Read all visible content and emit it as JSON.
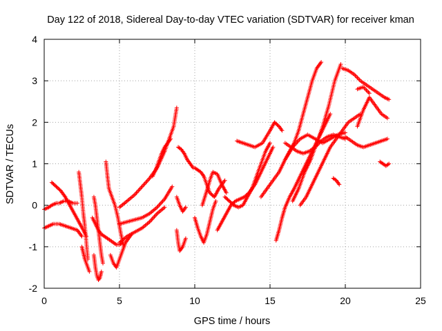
{
  "chart_data": {
    "type": "scatter",
    "title": "Day 122 of 2018, Sidereal Day-to-day VTEC variation (SDTVAR) for receiver kman",
    "xlabel": "GPS time / hours",
    "ylabel": "SDTVAR / TECUs",
    "xlim": [
      0,
      25
    ],
    "ylim": [
      -2,
      4
    ],
    "xticks": [
      "0",
      "5",
      "10",
      "15",
      "20",
      "25"
    ],
    "yticks": [
      "-2",
      "-1",
      "0",
      "1",
      "2",
      "3",
      "4"
    ],
    "grid": true,
    "marker": "+",
    "color": "#ff0000",
    "series": [
      {
        "x": [
          0.0,
          0.3,
          0.5,
          0.8,
          1.0,
          1.3,
          1.6,
          1.9,
          2.2
        ],
        "y": [
          -0.1,
          -0.05,
          0.0,
          0.05,
          0.05,
          0.1,
          0.1,
          0.05,
          0.05
        ]
      },
      {
        "x": [
          0.0,
          0.3,
          0.6,
          1.0,
          1.4,
          1.8,
          2.2,
          2.5
        ],
        "y": [
          -0.55,
          -0.5,
          -0.45,
          -0.45,
          -0.5,
          -0.55,
          -0.6,
          -0.75
        ]
      },
      {
        "x": [
          0.5,
          0.8,
          1.1,
          1.4,
          1.7,
          2.0,
          2.3,
          2.6,
          2.8
        ],
        "y": [
          0.55,
          0.45,
          0.35,
          0.2,
          0.0,
          -0.2,
          -0.4,
          -0.6,
          -0.75
        ]
      },
      {
        "x": [
          2.3,
          2.4,
          2.5,
          2.6,
          2.7,
          2.8,
          2.9
        ],
        "y": [
          0.8,
          0.5,
          0.2,
          -0.2,
          -0.5,
          -0.9,
          -1.3
        ]
      },
      {
        "x": [
          2.5,
          2.6,
          2.7,
          2.8,
          2.9,
          3.0
        ],
        "y": [
          -1.0,
          -1.15,
          -1.3,
          -1.4,
          -1.5,
          -1.6
        ]
      },
      {
        "x": [
          3.2,
          3.4,
          3.6,
          3.8,
          4.0,
          4.2,
          4.4,
          4.6,
          4.8,
          5.0,
          5.2
        ],
        "y": [
          -0.3,
          -0.45,
          -0.6,
          -0.7,
          -0.75,
          -0.8,
          -0.85,
          -0.9,
          -0.95,
          -0.95,
          -0.9
        ]
      },
      {
        "x": [
          3.3,
          3.4,
          3.5,
          3.6,
          3.7,
          3.8
        ],
        "y": [
          -1.2,
          -1.5,
          -1.7,
          -1.8,
          -1.75,
          -1.6
        ]
      },
      {
        "x": [
          3.3,
          3.4,
          3.5,
          3.6,
          3.7,
          3.8,
          3.9
        ],
        "y": [
          0.2,
          0.0,
          -0.3,
          -0.6,
          -0.9,
          -1.2,
          -1.4
        ]
      },
      {
        "x": [
          4.1,
          4.2,
          4.3,
          4.5,
          4.7,
          4.9,
          5.1,
          5.3
        ],
        "y": [
          1.05,
          0.7,
          0.4,
          0.2,
          0.0,
          -0.3,
          -0.7,
          -1.0
        ]
      },
      {
        "x": [
          4.4,
          4.6,
          4.8,
          5.0,
          5.2,
          5.4,
          5.6,
          5.8
        ],
        "y": [
          -1.2,
          -1.4,
          -1.5,
          -1.3,
          -1.1,
          -0.9,
          -0.8,
          -0.7
        ]
      },
      {
        "x": [
          5.0,
          5.5,
          6.0,
          6.5,
          7.0,
          7.5,
          8.0,
          8.3,
          8.6,
          8.8
        ],
        "y": [
          -0.05,
          0.1,
          0.25,
          0.45,
          0.65,
          0.9,
          1.3,
          1.6,
          1.9,
          2.35
        ]
      },
      {
        "x": [
          5.0,
          5.5,
          6.0,
          6.5,
          7.0,
          7.5,
          8.0,
          8.5
        ],
        "y": [
          -0.45,
          -0.4,
          -0.35,
          -0.3,
          -0.2,
          -0.05,
          0.15,
          0.45
        ]
      },
      {
        "x": [
          5.0,
          5.5,
          6.0,
          6.5,
          7.0,
          7.5,
          8.0
        ],
        "y": [
          -0.9,
          -0.75,
          -0.65,
          -0.55,
          -0.4,
          -0.2,
          -0.05
        ]
      },
      {
        "x": [
          7.2,
          7.4,
          7.6,
          7.8,
          8.0,
          8.2,
          8.4
        ],
        "y": [
          0.7,
          0.85,
          1.05,
          1.25,
          1.4,
          1.5,
          1.6
        ]
      },
      {
        "x": [
          8.8,
          8.9,
          9.0,
          9.2,
          9.4
        ],
        "y": [
          -0.6,
          -0.9,
          -1.1,
          -1.0,
          -0.8
        ]
      },
      {
        "x": [
          8.8,
          9.0,
          9.2,
          9.4
        ],
        "y": [
          0.2,
          0.0,
          -0.15,
          -0.05
        ]
      },
      {
        "x": [
          8.9,
          9.1,
          9.3,
          9.5,
          9.7,
          9.9
        ],
        "y": [
          1.4,
          1.35,
          1.25,
          1.1,
          1.0,
          0.9
        ]
      },
      {
        "x": [
          10.0,
          10.2,
          10.4,
          10.6,
          10.8,
          11.0,
          11.3,
          11.6,
          12.0
        ],
        "y": [
          0.9,
          0.85,
          0.8,
          0.7,
          0.5,
          0.3,
          0.2,
          0.4,
          0.6
        ]
      },
      {
        "x": [
          10.0,
          10.2,
          10.4,
          10.6,
          10.8,
          11.0,
          11.2,
          11.4
        ],
        "y": [
          -0.3,
          -0.55,
          -0.75,
          -0.9,
          -0.7,
          -0.4,
          -0.1,
          0.1
        ]
      },
      {
        "x": [
          10.5,
          10.8,
          11.0,
          11.2,
          11.5,
          11.8,
          12.1
        ],
        "y": [
          0.0,
          0.35,
          0.6,
          0.8,
          0.75,
          0.5,
          0.3
        ]
      },
      {
        "x": [
          11.5,
          11.8,
          12.1,
          12.4,
          12.7,
          13.0,
          13.3,
          13.6,
          14.0,
          14.4,
          14.8,
          15.2
        ],
        "y": [
          -0.6,
          -0.4,
          -0.2,
          0.0,
          0.1,
          0.15,
          0.2,
          0.3,
          0.5,
          0.8,
          1.1,
          1.4
        ]
      },
      {
        "x": [
          12.0,
          12.3,
          12.6,
          12.9,
          13.2,
          13.5,
          13.8,
          14.1,
          14.4,
          14.7,
          15.0
        ],
        "y": [
          0.2,
          0.1,
          0.0,
          -0.05,
          0.0,
          0.2,
          0.4,
          0.7,
          1.0,
          1.3,
          1.5
        ]
      },
      {
        "x": [
          12.8,
          13.2,
          13.6,
          14.0,
          14.5,
          15.0,
          15.3,
          15.6,
          15.8
        ],
        "y": [
          1.55,
          1.5,
          1.45,
          1.4,
          1.5,
          1.8,
          2.0,
          1.9,
          1.8
        ]
      },
      {
        "x": [
          14.4,
          14.8,
          15.2,
          15.6,
          16.0,
          16.5,
          17.0,
          17.5,
          18.0,
          18.5,
          19.0,
          19.5,
          20.0
        ],
        "y": [
          0.2,
          0.4,
          0.6,
          0.8,
          1.1,
          1.4,
          1.6,
          1.7,
          1.6,
          1.5,
          1.6,
          1.7,
          1.75
        ]
      },
      {
        "x": [
          15.4,
          15.6,
          15.8,
          16.0,
          16.3,
          16.6,
          17.0,
          17.4,
          17.8,
          18.2,
          18.6,
          19.0
        ],
        "y": [
          -0.85,
          -0.6,
          -0.3,
          -0.05,
          0.2,
          0.4,
          0.7,
          1.0,
          1.3,
          1.6,
          1.9,
          2.2
        ]
      },
      {
        "x": [
          16.0,
          16.3,
          16.6,
          16.9,
          17.2,
          17.5,
          17.8,
          18.1,
          18.4
        ],
        "y": [
          1.1,
          1.3,
          1.5,
          1.8,
          2.2,
          2.6,
          3.0,
          3.3,
          3.45
        ]
      },
      {
        "x": [
          16.0,
          16.4,
          16.8,
          17.2,
          17.6,
          18.0,
          18.4,
          18.8,
          19.2,
          19.6,
          20.0
        ],
        "y": [
          1.5,
          1.4,
          1.3,
          1.25,
          1.3,
          1.4,
          1.55,
          1.65,
          1.7,
          1.65,
          1.6
        ]
      },
      {
        "x": [
          16.5,
          16.9,
          17.3,
          17.7,
          18.1,
          18.5,
          18.9,
          19.3,
          19.7
        ],
        "y": [
          0.1,
          0.4,
          0.8,
          1.1,
          1.5,
          1.9,
          2.4,
          3.0,
          3.4
        ]
      },
      {
        "x": [
          17.0,
          17.4,
          17.8,
          18.2,
          18.6,
          19.0,
          19.4,
          19.8,
          20.2,
          20.6,
          21.0
        ],
        "y": [
          0.0,
          0.2,
          0.5,
          0.8,
          1.1,
          1.4,
          1.6,
          1.8,
          2.0,
          2.1,
          2.2
        ]
      },
      {
        "x": [
          19.2,
          19.4,
          19.6
        ],
        "y": [
          0.65,
          0.6,
          0.5
        ]
      },
      {
        "x": [
          19.8,
          20.2,
          20.6,
          21.0,
          21.4,
          21.8,
          22.2,
          22.6,
          22.9
        ],
        "y": [
          3.3,
          3.25,
          3.15,
          3.0,
          2.9,
          2.8,
          2.7,
          2.6,
          2.55
        ]
      },
      {
        "x": [
          20.0,
          20.4,
          20.8,
          21.2,
          21.6,
          22.0,
          22.4,
          22.8
        ],
        "y": [
          1.65,
          1.55,
          1.45,
          1.4,
          1.45,
          1.5,
          1.55,
          1.6
        ]
      },
      {
        "x": [
          20.8,
          21.2,
          21.6,
          22.0,
          22.4,
          22.8
        ],
        "y": [
          1.9,
          2.3,
          2.6,
          2.4,
          2.2,
          2.1
        ]
      },
      {
        "x": [
          20.8,
          21.2,
          21.6
        ],
        "y": [
          2.8,
          2.85,
          2.7
        ]
      },
      {
        "x": [
          22.3,
          22.5,
          22.7,
          22.9
        ],
        "y": [
          1.05,
          1.0,
          0.95,
          1.0
        ]
      }
    ]
  }
}
